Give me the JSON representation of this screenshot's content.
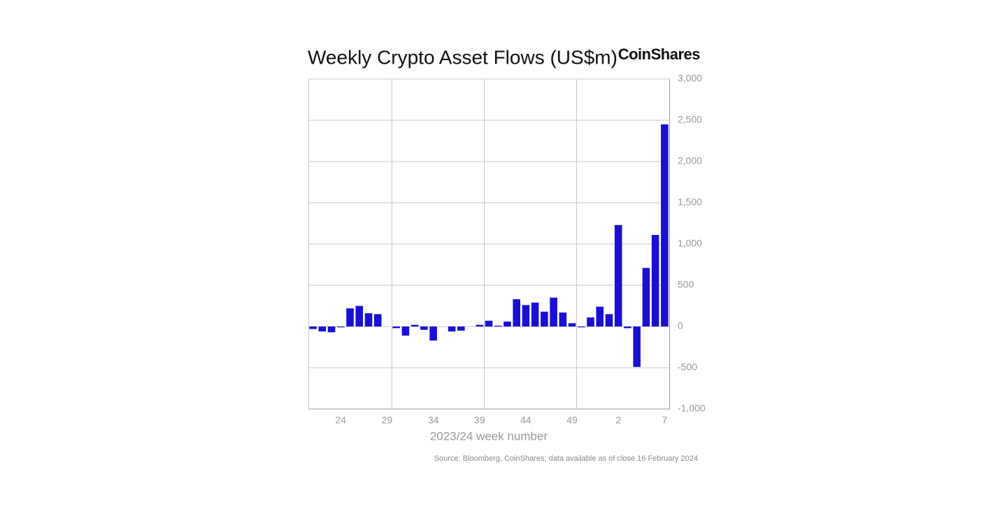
{
  "chart_data": {
    "type": "bar",
    "title": "Weekly Crypto Asset Flows (US$m)",
    "logo": "CoinShares",
    "x_label": "2023/24 week number",
    "source": "Source: Bloomberg, CoinShares, data available as of close 16 February 2024",
    "categories": [
      null,
      null,
      null,
      "24",
      null,
      null,
      null,
      null,
      "29",
      null,
      null,
      null,
      null,
      "34",
      null,
      null,
      null,
      null,
      "39",
      null,
      null,
      null,
      null,
      "44",
      null,
      null,
      null,
      null,
      "49",
      null,
      null,
      null,
      null,
      "2",
      null,
      null,
      null,
      null,
      "7"
    ],
    "values": [
      -30,
      -60,
      -70,
      -10,
      220,
      250,
      160,
      150,
      0,
      -20,
      -110,
      20,
      -40,
      -170,
      0,
      -60,
      -50,
      0,
      20,
      70,
      10,
      60,
      330,
      260,
      290,
      180,
      350,
      170,
      40,
      -10,
      110,
      240,
      150,
      1230,
      -20,
      -490,
      710,
      1110,
      2450
    ],
    "color": "#1a10d4",
    "ylim": [
      -1000,
      3000
    ],
    "yticks": [
      {
        "value": -1000,
        "label": "-1,000"
      },
      -500,
      0,
      500,
      {
        "value": 1000,
        "label": "1,000"
      },
      {
        "value": 1500,
        "label": "1,500"
      },
      {
        "value": 2000,
        "label": "2,000"
      },
      {
        "value": 2500,
        "label": "2,500"
      },
      {
        "value": 3000,
        "label": "3,000"
      }
    ],
    "grid": true
  }
}
